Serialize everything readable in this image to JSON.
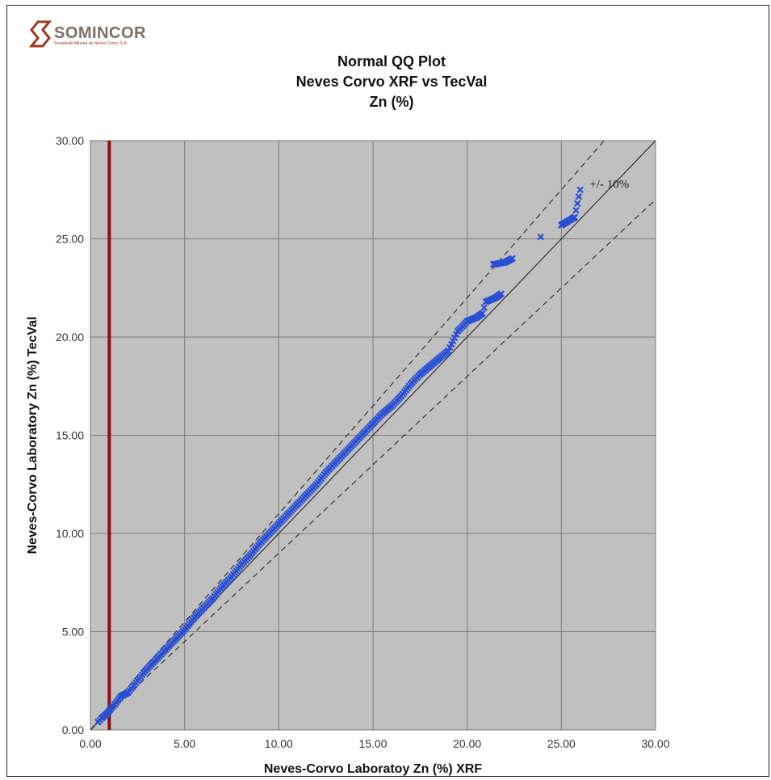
{
  "logo": {
    "name": "SOMINCOR",
    "subtitle": "Sociedade Mineira de Neves-Corvo, S.A.",
    "color": "#9b3a1f"
  },
  "chart_data": {
    "type": "scatter",
    "title": [
      "Normal QQ Plot",
      "Neves Corvo XRF vs TecVal",
      "Zn (%)"
    ],
    "xlabel": "Neves-Corvo Laboratoy Zn  (%) XRF",
    "ylabel": "Neves-Corvo Laboratory  Zn  (%) TecVal",
    "xlim": [
      0,
      30
    ],
    "ylim": [
      0,
      30
    ],
    "x_ticks": [
      "0.00",
      "5.00",
      "10.00",
      "15.00",
      "20.00",
      "25.00",
      "30.00"
    ],
    "y_ticks": [
      "0.00",
      "5.00",
      "10.00",
      "15.00",
      "20.00",
      "25.00",
      "30.00"
    ],
    "grid": true,
    "plot_background": "#c0c0c0",
    "marker_color": "#2a4fd4",
    "detection_limit_line": {
      "x": 1.0,
      "color": "#8b1010"
    },
    "reference_lines": [
      {
        "name": "1:1",
        "slope": 1.0,
        "style": "solid"
      },
      {
        "name": "+10%",
        "slope": 1.1,
        "style": "dashed"
      },
      {
        "name": "-10%",
        "slope": 0.9,
        "style": "dashed"
      }
    ],
    "annotation": "+/- 10%",
    "series": [
      {
        "marker": "x",
        "points": [
          [
            0.4,
            0.4
          ],
          [
            0.6,
            0.6
          ],
          [
            0.9,
            0.85
          ],
          [
            1.1,
            1.1
          ],
          [
            1.3,
            1.3
          ],
          [
            1.6,
            1.7
          ],
          [
            2.0,
            1.9
          ],
          [
            2.5,
            2.5
          ],
          [
            3.0,
            3.1
          ],
          [
            3.5,
            3.6
          ],
          [
            4.0,
            4.1
          ],
          [
            4.5,
            4.6
          ],
          [
            5.0,
            5.1
          ],
          [
            5.5,
            5.7
          ],
          [
            6.0,
            6.2
          ],
          [
            6.5,
            6.7
          ],
          [
            7.0,
            7.3
          ],
          [
            7.5,
            7.8
          ],
          [
            8.0,
            8.4
          ],
          [
            8.5,
            8.9
          ],
          [
            9.0,
            9.5
          ],
          [
            9.5,
            10.0
          ],
          [
            10.0,
            10.5
          ],
          [
            10.5,
            11.0
          ],
          [
            11.0,
            11.5
          ],
          [
            11.5,
            12.0
          ],
          [
            12.0,
            12.5
          ],
          [
            12.5,
            13.1
          ],
          [
            13.0,
            13.6
          ],
          [
            13.5,
            14.1
          ],
          [
            14.0,
            14.6
          ],
          [
            14.5,
            15.1
          ],
          [
            15.0,
            15.6
          ],
          [
            15.5,
            16.1
          ],
          [
            16.0,
            16.5
          ],
          [
            16.5,
            17.0
          ],
          [
            17.0,
            17.6
          ],
          [
            17.5,
            18.1
          ],
          [
            18.0,
            18.5
          ],
          [
            18.5,
            18.9
          ],
          [
            19.0,
            19.3
          ],
          [
            19.5,
            20.3
          ],
          [
            20.0,
            20.8
          ],
          [
            20.5,
            21.0
          ],
          [
            20.8,
            21.2
          ],
          [
            21.0,
            21.8
          ],
          [
            21.5,
            22.0
          ],
          [
            21.8,
            22.2
          ],
          [
            21.4,
            23.7
          ],
          [
            22.0,
            23.8
          ],
          [
            22.4,
            24.0
          ],
          [
            23.9,
            25.1
          ],
          [
            25.0,
            25.7
          ],
          [
            25.7,
            26.1
          ],
          [
            26.0,
            27.5
          ]
        ]
      }
    ]
  }
}
